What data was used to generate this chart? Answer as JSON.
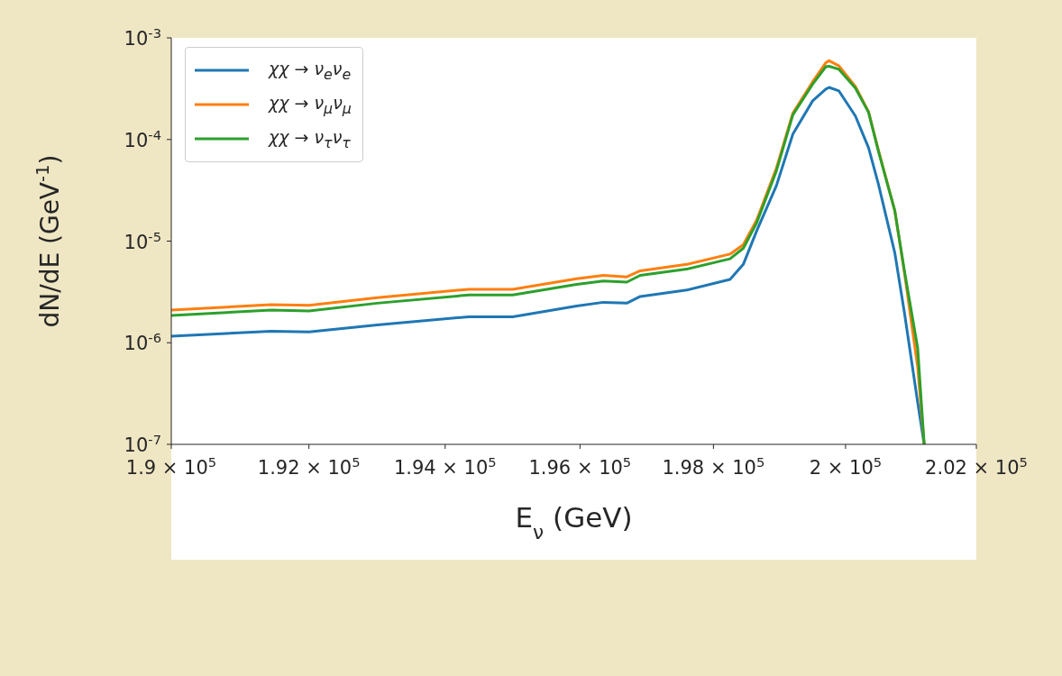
{
  "chart_data": {
    "type": "line",
    "xlabel": "E$_{ν}$ (GeV)",
    "ylabel": "dN/dE (GeV$^{-1}$)",
    "log": "xy",
    "xlim": [
      190000,
      202000
    ],
    "xticks": [
      {
        "value": 190000,
        "label": "1.9 × 10$^{5}$"
      },
      {
        "value": 192000,
        "label": "1.92 × 10$^{5}$"
      },
      {
        "value": 194000,
        "label": "1.94 × 10$^{5}$"
      },
      {
        "value": 196000,
        "label": "1.96 × 10$^{5}$"
      },
      {
        "value": 198000,
        "label": "1.98 × 10$^{5}$"
      },
      {
        "value": 200000,
        "label": "2 × 10$^{5}$"
      },
      {
        "value": 202000,
        "label": "2.02 × 10$^{5}$"
      }
    ],
    "ylim": [
      1e-07,
      0.001
    ],
    "yticks": [
      {
        "value": 1e-07,
        "label": "10$^{-7}$"
      },
      {
        "value": 1e-06,
        "label": "10$^{-6}$"
      },
      {
        "value": 1e-05,
        "label": "10$^{-5}$"
      },
      {
        "value": 0.0001,
        "label": "10$^{-4}$"
      },
      {
        "value": 0.001,
        "label": "10$^{-3}$"
      }
    ],
    "x": [
      190000,
      191450,
      192000,
      193000,
      194350,
      195000,
      195950,
      196350,
      196700,
      196900,
      197600,
      198250,
      198450,
      198650,
      198950,
      199200,
      199500,
      199700,
      199750,
      199900,
      200150,
      200350,
      200500,
      200750,
      200900,
      201100,
      201200
    ],
    "series": [
      {
        "name": "χχ → ν$_{e}$ν$_{e}$",
        "color": "#1f77b4",
        "values": [
          1.16e-06,
          1.3e-06,
          1.28e-06,
          1.5e-06,
          1.8e-06,
          1.8e-06,
          2.3e-06,
          2.5e-06,
          2.45e-06,
          2.85e-06,
          3.3e-06,
          4.2e-06,
          5.9e-06,
          1.25e-05,
          3.5e-05,
          0.000113,
          0.00024,
          0.000313,
          0.000325,
          0.0003,
          0.00017,
          8.3e-05,
          3.65e-05,
          7.7e-06,
          1.93e-06,
          2.6e-07,
          1e-07
        ]
      },
      {
        "name": "χχ → ν$_{μ}$ν$_{μ}$",
        "color": "#ff7f0e",
        "values": [
          2.1e-06,
          2.37e-06,
          2.33e-06,
          2.78e-06,
          3.36e-06,
          3.36e-06,
          4.26e-06,
          4.6e-06,
          4.45e-06,
          5.1e-06,
          5.9e-06,
          7.45e-06,
          9.2e-06,
          1.6e-05,
          5.2e-05,
          0.000182,
          0.00037,
          0.00057,
          0.000596,
          0.00053,
          0.000333,
          0.000188,
          7.9e-05,
          2e-05,
          4.8e-06,
          5.8e-07,
          1e-07
        ]
      },
      {
        "name": "χχ → ν$_{τ}$ν$_{τ}$",
        "color": "#2ca02c",
        "values": [
          1.85e-06,
          2.1e-06,
          2.05e-06,
          2.45e-06,
          2.95e-06,
          2.95e-06,
          3.75e-06,
          4.05e-06,
          3.95e-06,
          4.6e-06,
          5.3e-06,
          6.7e-06,
          8.5e-06,
          1.5e-05,
          4.9e-05,
          0.000175,
          0.00035,
          0.00052,
          0.000525,
          0.00049,
          0.00032,
          0.000185,
          7.7e-05,
          2e-05,
          5e-06,
          8.9e-07,
          1e-07
        ]
      }
    ],
    "legend": "top left",
    "marker": "none",
    "line_style": "solid",
    "grid": false
  }
}
